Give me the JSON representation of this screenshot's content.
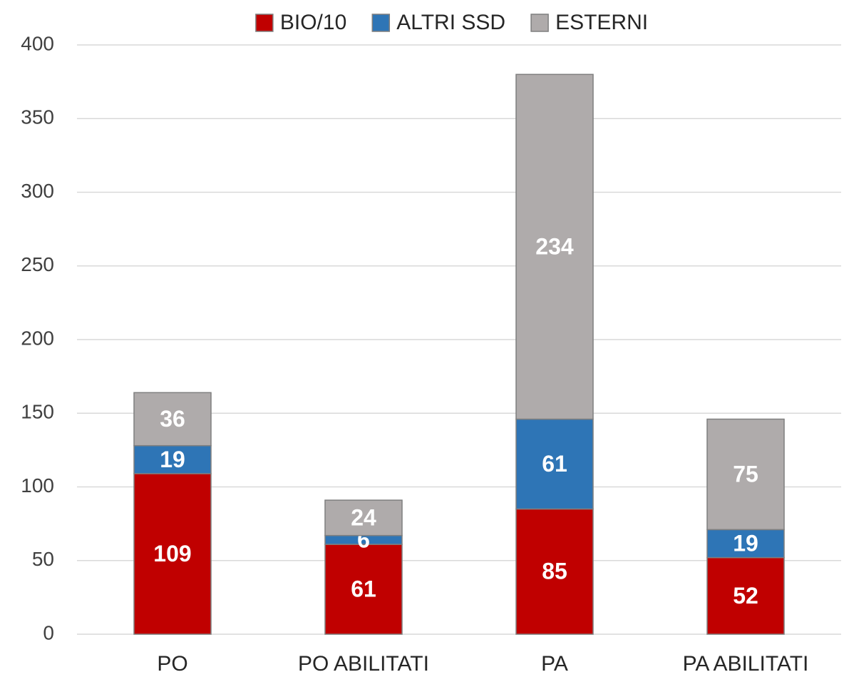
{
  "chart_data": {
    "type": "stacked_bar",
    "categories": [
      "PO",
      "PO ABILITATI",
      "PA",
      "PA ABILITATI"
    ],
    "series": [
      {
        "name": "BIO/10",
        "color": "#c00000",
        "values": [
          109,
          61,
          85,
          52
        ]
      },
      {
        "name": "ALTRI SSD",
        "color": "#2e75b6",
        "values": [
          19,
          6,
          61,
          19
        ]
      },
      {
        "name": "ESTERNI",
        "color": "#afabab",
        "values": [
          36,
          24,
          234,
          75
        ]
      }
    ],
    "ylim": [
      0,
      400
    ],
    "yticks": [
      0,
      50,
      100,
      150,
      200,
      250,
      300,
      350,
      400
    ],
    "grid": true,
    "legend": "top"
  }
}
